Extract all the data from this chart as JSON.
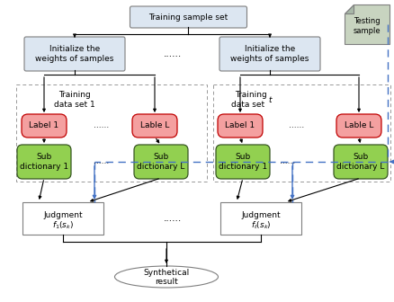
{
  "bg_color": "#ffffff",
  "box_fill": "#dce6f1",
  "box_edge": "#7f7f7f",
  "red_fill": "#f4a0a0",
  "red_edge": "#c00000",
  "green_fill": "#92d050",
  "green_edge": "#375623",
  "testing_fill": "#c8d4c0",
  "testing_edge": "#7f7f7f",
  "dashed_color": "#4472c4",
  "dashed_box_color": "#999999",
  "font_size": 6.5,
  "training_sample_set": "Training sample set",
  "init_weights_1": "Initialize the\nweights of samples",
  "init_weights_t": "Initialize the\nweights of samples",
  "training_data_set_1": "Training\ndata set 1",
  "training_data_set_t": "Training\ndata set ",
  "training_data_set_t_italic": "t",
  "label_1_left": "Label 1",
  "label_L_left": "Lable L",
  "label_1_right": "Label 1",
  "label_L_right": "Lable L",
  "sub_dict_1_left": "Sub\ndictionary 1",
  "sub_dict_L_left": "Sub\ndictionary L",
  "sub_dict_1_right": "Sub\ndictionary 1",
  "sub_dict_L_right": "Sub\ndictionary L",
  "judgment_1": "Judgment\n$f_1(s_k)$",
  "judgment_t": "Judgment\n$f_t(s_k)$",
  "synthetical": "Synthetical\nresult",
  "testing": "Testing\nsample",
  "dots": "......"
}
